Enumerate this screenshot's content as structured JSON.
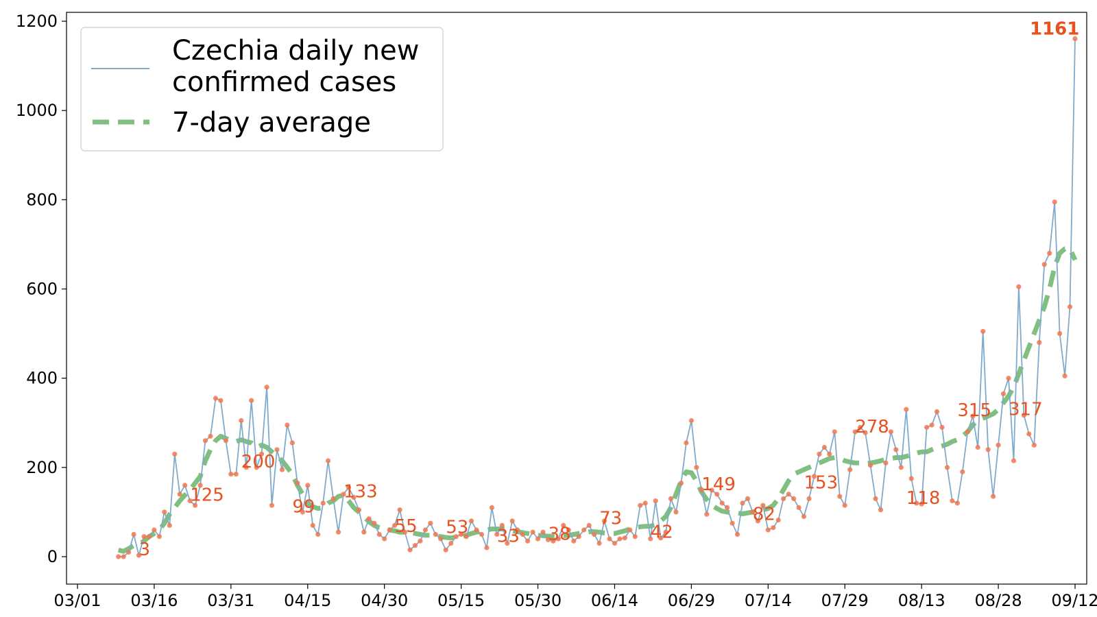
{
  "chart_data": {
    "type": "line",
    "title": "",
    "xlabel": "",
    "ylabel": "",
    "x_start": "2020-03-01",
    "x_end": "2020-09-12",
    "x_ticks": [
      "03/01",
      "03/16",
      "03/31",
      "04/15",
      "04/30",
      "05/15",
      "05/30",
      "06/14",
      "06/29",
      "07/14",
      "07/29",
      "08/13",
      "08/28",
      "09/12"
    ],
    "x_tick_dates": [
      "2020-03-01",
      "2020-03-16",
      "2020-03-31",
      "2020-04-15",
      "2020-04-30",
      "2020-05-15",
      "2020-05-30",
      "2020-06-14",
      "2020-06-29",
      "2020-07-14",
      "2020-07-29",
      "2020-08-13",
      "2020-08-28",
      "2020-09-12"
    ],
    "ylim": [
      -75,
      1225
    ],
    "y_ticks": [
      "0",
      "200",
      "400",
      "600",
      "800",
      "1000",
      "1200"
    ],
    "grid": false,
    "legend_position": "top-left",
    "colors": {
      "daily": "#7faacc",
      "points": "#f07850",
      "average": "#6ab46a",
      "annotation": "#e8501e"
    },
    "series": [
      {
        "name": "Czechia daily new confirmed cases",
        "start_date": "2020-03-09",
        "values": [
          0,
          0,
          10,
          50,
          3,
          45,
          45,
          60,
          45,
          100,
          70,
          230,
          140,
          160,
          125,
          115,
          160,
          260,
          270,
          355,
          350,
          260,
          185,
          185,
          305,
          200,
          350,
          200,
          230,
          380,
          115,
          240,
          195,
          295,
          255,
          165,
          100,
          160,
          70,
          50,
          120,
          215,
          130,
          55,
          140,
          155,
          133,
          105,
          55,
          85,
          75,
          50,
          40,
          60,
          70,
          105,
          55,
          15,
          25,
          35,
          60,
          75,
          50,
          40,
          15,
          30,
          45,
          50,
          45,
          80,
          60,
          50,
          20,
          110,
          50,
          70,
          30,
          80,
          60,
          50,
          35,
          55,
          40,
          55,
          38,
          35,
          40,
          70,
          60,
          35,
          45,
          60,
          70,
          50,
          30,
          80,
          40,
          30,
          40,
          42,
          60,
          45,
          115,
          120,
          40,
          125,
          42,
          55,
          130,
          100,
          165,
          255,
          305,
          200,
          150,
          95,
          149,
          140,
          120,
          110,
          75,
          50,
          120,
          130,
          100,
          80,
          115,
          60,
          65,
          82,
          130,
          140,
          130,
          110,
          90,
          130,
          180,
          230,
          245,
          230,
          280,
          135,
          115,
          195,
          280,
          290,
          278,
          205,
          130,
          105,
          210,
          280,
          240,
          200,
          330,
          175,
          120,
          118,
          290,
          295,
          325,
          290,
          200,
          125,
          120,
          190,
          280,
          315,
          245,
          505,
          240,
          135,
          250,
          365,
          400,
          215,
          605,
          317,
          275,
          250,
          480,
          655,
          680,
          795,
          500,
          405,
          560,
          1161
        ]
      },
      {
        "name": "7-day average",
        "start_date": "2020-03-09",
        "values": [
          15,
          12,
          18,
          25,
          28,
          35,
          45,
          52,
          60,
          75,
          95,
          110,
          125,
          138,
          150,
          165,
          180,
          215,
          240,
          260,
          270,
          265,
          260,
          258,
          262,
          258,
          255,
          245,
          250,
          245,
          235,
          225,
          215,
          200,
          185,
          160,
          140,
          120,
          112,
          108,
          110,
          120,
          125,
          135,
          138,
          125,
          110,
          100,
          90,
          78,
          70,
          65,
          62,
          60,
          58,
          55,
          55,
          54,
          52,
          50,
          48,
          48,
          46,
          45,
          43,
          42,
          44,
          46,
          48,
          52,
          55,
          57,
          60,
          62,
          62,
          62,
          60,
          58,
          56,
          54,
          52,
          50,
          48,
          47,
          46,
          46,
          46,
          47,
          48,
          50,
          52,
          54,
          56,
          56,
          55,
          53,
          52,
          52,
          55,
          58,
          62,
          65,
          67,
          68,
          68,
          72,
          80,
          90,
          110,
          140,
          170,
          190,
          188,
          170,
          145,
          128,
          115,
          108,
          102,
          100,
          98,
          98,
          96,
          98,
          100,
          102,
          105,
          108,
          115,
          130,
          150,
          170,
          185,
          190,
          195,
          200,
          205,
          210,
          215,
          220,
          222,
          220,
          215,
          212,
          210,
          210,
          208,
          210,
          212,
          215,
          218,
          220,
          222,
          222,
          225,
          228,
          232,
          235,
          235,
          240,
          245,
          248,
          252,
          258,
          262,
          270,
          280,
          295,
          305,
          310,
          315,
          320,
          330,
          345,
          360,
          380,
          410,
          440,
          470,
          500,
          530,
          560,
          600,
          650,
          680,
          690,
          690,
          665
        ]
      }
    ],
    "annotations": [
      {
        "date": "2020-03-13",
        "value": 3,
        "text": "3"
      },
      {
        "date": "2020-03-23",
        "value": 125,
        "text": "125"
      },
      {
        "date": "2020-04-02",
        "value": 200,
        "text": "200"
      },
      {
        "date": "2020-04-12",
        "value": 99,
        "text": "99"
      },
      {
        "date": "2020-04-22",
        "value": 133,
        "text": "133"
      },
      {
        "date": "2020-05-02",
        "value": 55,
        "text": "55"
      },
      {
        "date": "2020-05-12",
        "value": 53,
        "text": "53"
      },
      {
        "date": "2020-05-22",
        "value": 33,
        "text": "33"
      },
      {
        "date": "2020-06-01",
        "value": 38,
        "text": "38"
      },
      {
        "date": "2020-06-11",
        "value": 73,
        "text": "73"
      },
      {
        "date": "2020-06-21",
        "value": 42,
        "text": "42"
      },
      {
        "date": "2020-07-01",
        "value": 149,
        "text": "149"
      },
      {
        "date": "2020-07-11",
        "value": 82,
        "text": "82"
      },
      {
        "date": "2020-07-21",
        "value": 153,
        "text": "153"
      },
      {
        "date": "2020-07-31",
        "value": 278,
        "text": "278"
      },
      {
        "date": "2020-08-10",
        "value": 118,
        "text": "118"
      },
      {
        "date": "2020-08-20",
        "value": 315,
        "text": "315"
      },
      {
        "date": "2020-08-30",
        "value": 317,
        "text": "317"
      }
    ],
    "peak_annotation": {
      "date": "2020-09-08",
      "value": 1161,
      "text": "1161"
    }
  }
}
